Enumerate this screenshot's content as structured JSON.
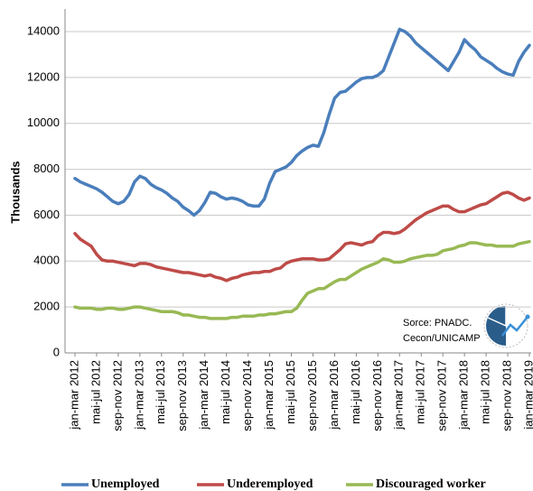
{
  "chart_data": {
    "type": "line",
    "y_axis_label": "Thousands",
    "annotation": [
      "Sorce: PNADC.",
      "Cecon/UNICAMP"
    ],
    "categories": [
      "jan-mar 2012",
      null,
      null,
      null,
      "mai-jul 2012",
      null,
      null,
      null,
      "sep-nov 2012",
      null,
      null,
      null,
      "jan-mar 2013",
      null,
      null,
      null,
      "mai-jul 2013",
      null,
      null,
      null,
      "sep-nov 2013",
      null,
      null,
      null,
      "jan-mar 2014",
      null,
      null,
      null,
      "mai-jul 2014",
      null,
      null,
      null,
      "sep-nov 2014",
      null,
      null,
      null,
      "jan-mar 2015",
      null,
      null,
      null,
      "mai-jul 2015",
      null,
      null,
      null,
      "sep-nov 2015",
      null,
      null,
      null,
      "jan-mar 2016",
      null,
      null,
      null,
      "mai-jul 2016",
      null,
      null,
      null,
      "sep-nov 2016",
      null,
      null,
      null,
      "jan-mar 2017",
      null,
      null,
      null,
      "mai-jul 2017",
      null,
      null,
      null,
      "sep-nov 2017",
      null,
      null,
      null,
      "jan-mar 2018",
      null,
      null,
      null,
      "mai-jul 2018",
      null,
      null,
      null,
      "sep-nov 2018",
      null,
      null,
      null,
      "jan-mar 2019"
    ],
    "series": [
      {
        "name": "Unemployed",
        "color": "#4a7ebb",
        "values": [
          7600,
          7450,
          7350,
          7250,
          7150,
          7000,
          6800,
          6600,
          6500,
          6600,
          6900,
          7450,
          7700,
          7600,
          7350,
          7200,
          7100,
          6950,
          6750,
          6600,
          6350,
          6200,
          6000,
          6200,
          6550,
          7000,
          6950,
          6800,
          6700,
          6750,
          6700,
          6600,
          6450,
          6400,
          6400,
          6700,
          7400,
          7900,
          8000,
          8100,
          8300,
          8600,
          8800,
          8950,
          9050,
          9000,
          9600,
          10400,
          11100,
          11350,
          11400,
          11600,
          11800,
          11950,
          12000,
          12000,
          12100,
          12300,
          12900,
          13500,
          14100,
          14000,
          13800,
          13500,
          13300,
          13100,
          12900,
          12700,
          12500,
          12300,
          12700,
          13100,
          13650,
          13400,
          13200,
          12900,
          12750,
          12600,
          12400,
          12250,
          12150,
          12100,
          12700,
          13100,
          13400
        ]
      },
      {
        "name": "Underemployed",
        "color": "#be4b48",
        "values": [
          5200,
          4950,
          4800,
          4650,
          4300,
          4050,
          4000,
          4000,
          3950,
          3900,
          3850,
          3800,
          3900,
          3900,
          3850,
          3750,
          3700,
          3650,
          3600,
          3550,
          3500,
          3500,
          3450,
          3400,
          3350,
          3400,
          3300,
          3250,
          3150,
          3250,
          3300,
          3400,
          3450,
          3500,
          3500,
          3550,
          3550,
          3650,
          3700,
          3900,
          4000,
          4050,
          4100,
          4100,
          4100,
          4050,
          4050,
          4100,
          4300,
          4500,
          4750,
          4800,
          4750,
          4700,
          4800,
          4850,
          5100,
          5250,
          5250,
          5200,
          5250,
          5400,
          5600,
          5800,
          5950,
          6100,
          6200,
          6300,
          6400,
          6400,
          6250,
          6150,
          6150,
          6250,
          6350,
          6450,
          6500,
          6650,
          6800,
          6950,
          7000,
          6900,
          6750,
          6650,
          6750
        ]
      },
      {
        "name": "Discouraged worker",
        "color": "#98b954",
        "values": [
          2000,
          1950,
          1950,
          1950,
          1900,
          1900,
          1950,
          1950,
          1900,
          1900,
          1950,
          2000,
          2000,
          1950,
          1900,
          1850,
          1800,
          1800,
          1800,
          1750,
          1650,
          1650,
          1600,
          1550,
          1550,
          1500,
          1500,
          1500,
          1500,
          1550,
          1550,
          1600,
          1600,
          1600,
          1650,
          1650,
          1700,
          1700,
          1750,
          1800,
          1800,
          1950,
          2300,
          2600,
          2700,
          2800,
          2800,
          2950,
          3100,
          3200,
          3200,
          3350,
          3500,
          3650,
          3750,
          3850,
          3950,
          4100,
          4050,
          3950,
          3950,
          4000,
          4100,
          4150,
          4200,
          4250,
          4250,
          4300,
          4450,
          4500,
          4550,
          4650,
          4700,
          4800,
          4800,
          4750,
          4700,
          4700,
          4650,
          4650,
          4650,
          4650,
          4750,
          4800,
          4850
        ]
      }
    ],
    "ylim": [
      0,
      14000
    ],
    "yticks": [
      0,
      2000,
      4000,
      6000,
      8000,
      10000,
      12000,
      14000
    ],
    "grid": true
  }
}
